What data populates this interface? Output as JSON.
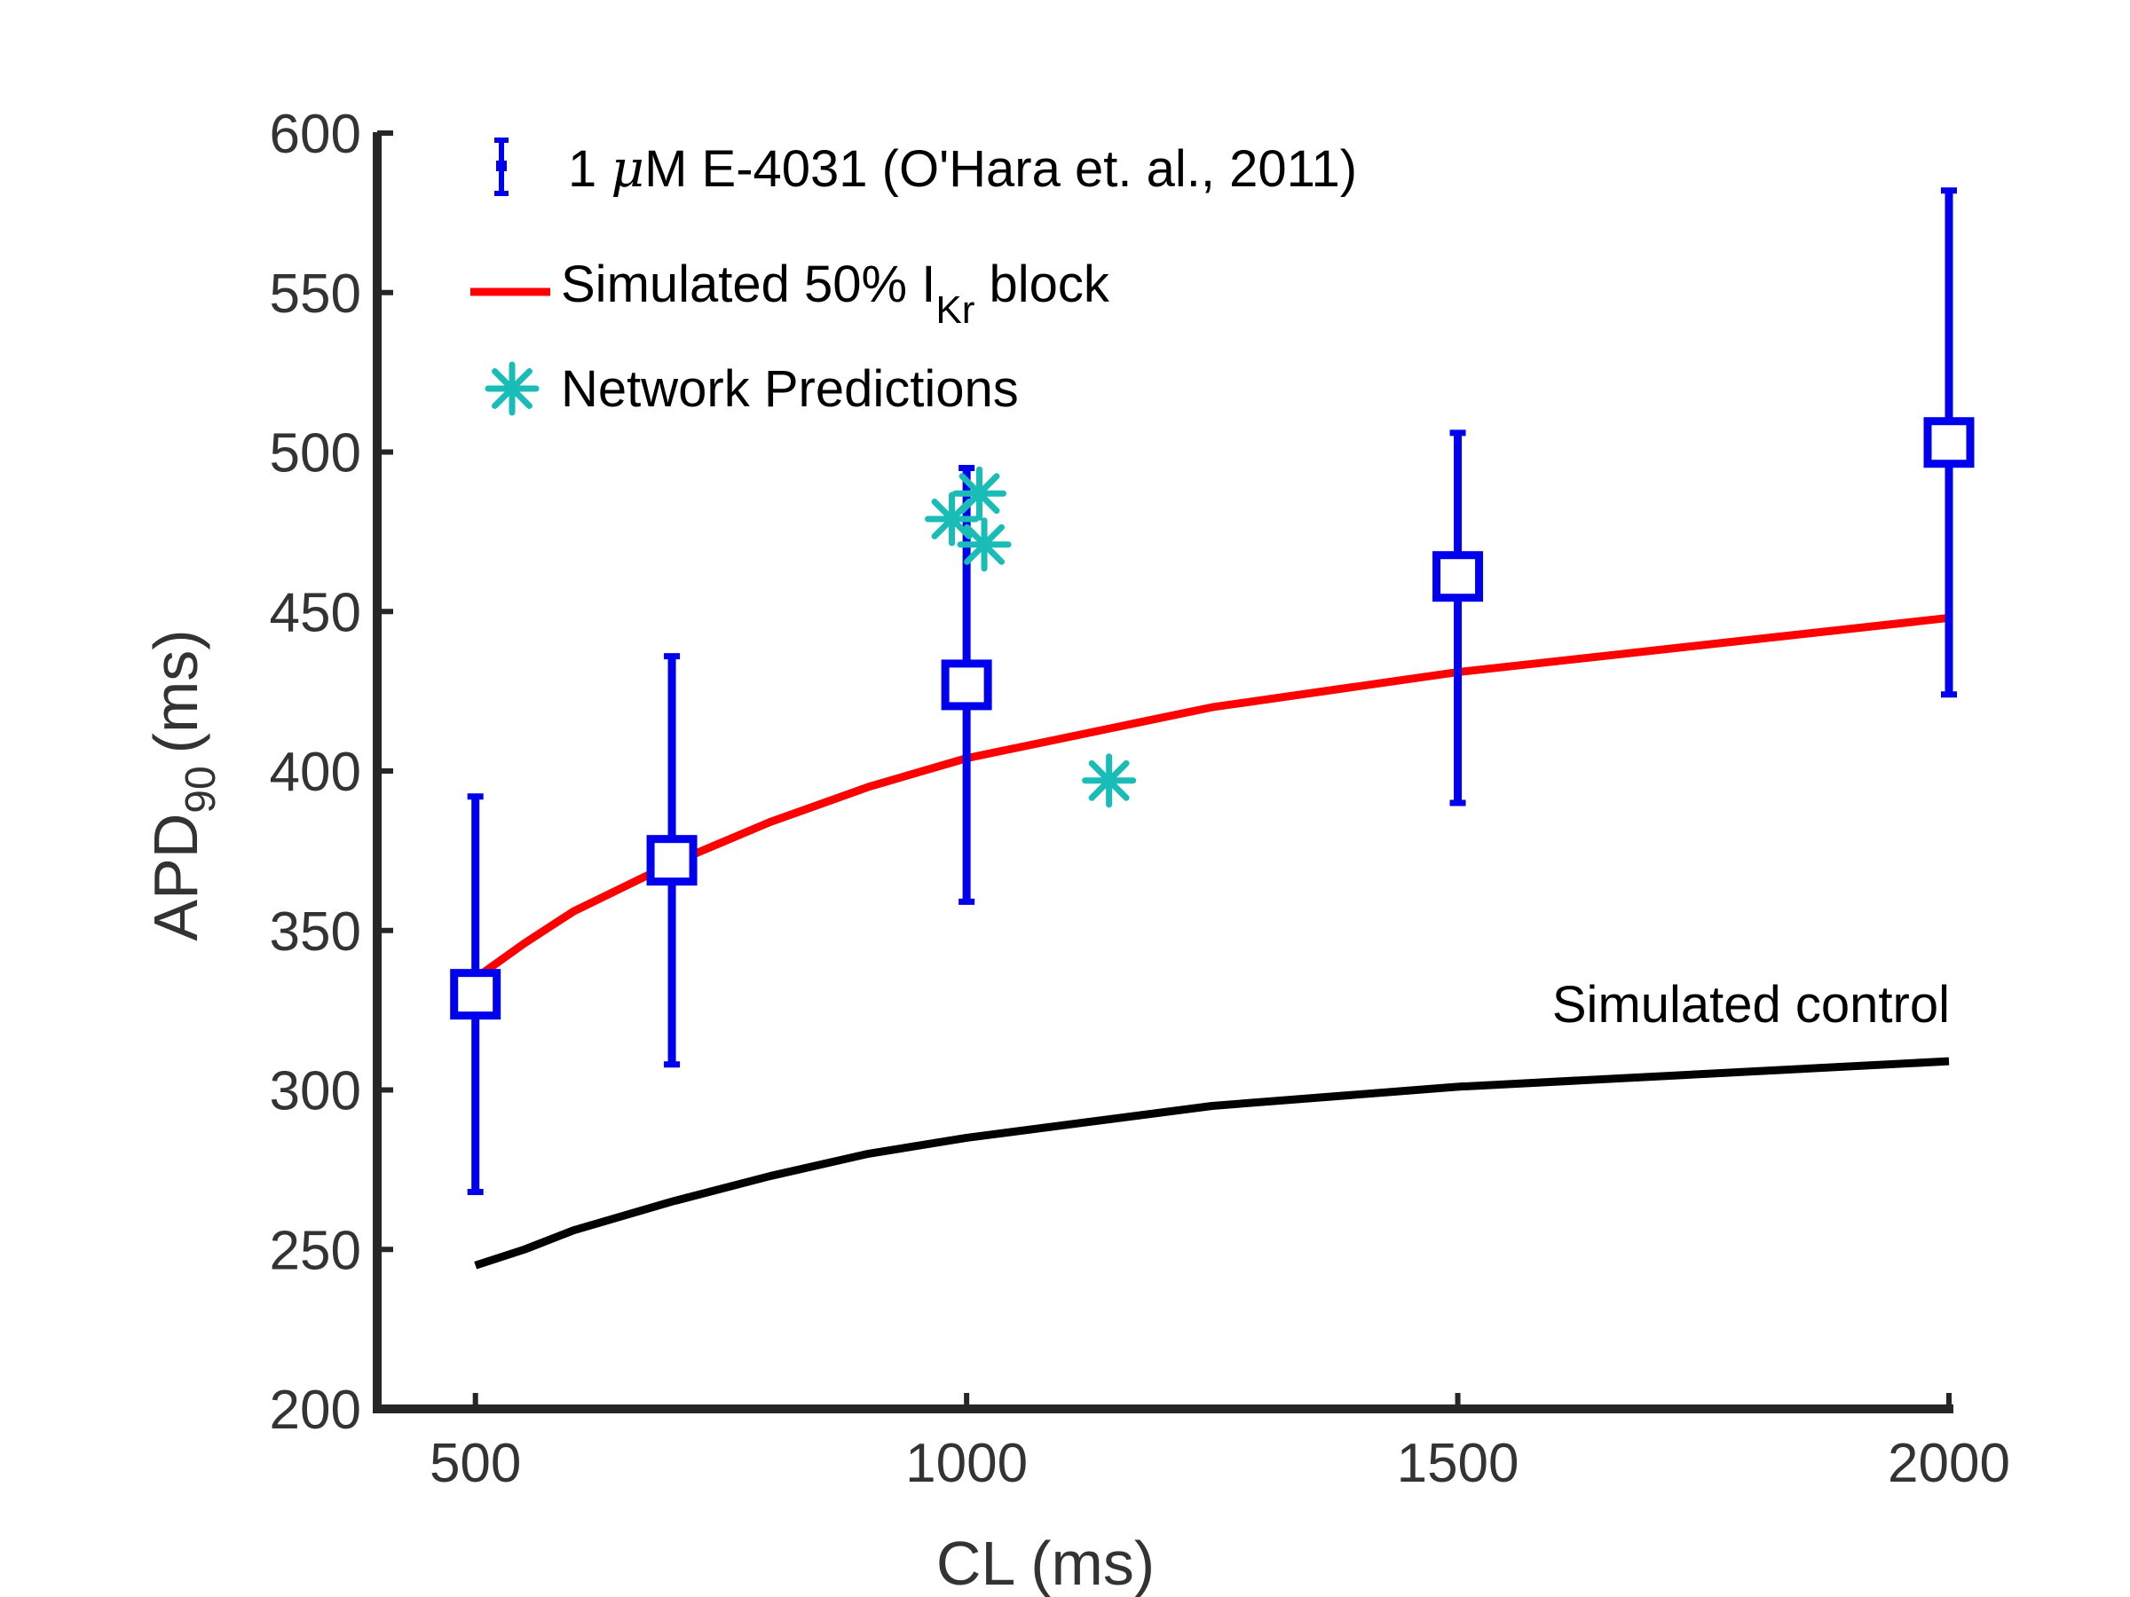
{
  "chart_data": {
    "type": "scatter",
    "xlabel": "CL (ms)",
    "ylabel_main": "APD",
    "ylabel_sub": "90",
    "ylabel_unit": "(ms)",
    "xlim": [
      400,
      2000
    ],
    "ylim": [
      200,
      600
    ],
    "xticks": [
      500,
      1000,
      1500,
      2000
    ],
    "yticks": [
      200,
      250,
      300,
      350,
      400,
      450,
      500,
      550,
      600
    ],
    "grid": false,
    "legend_position": "top-left",
    "colors": {
      "experimental": "#0000ee",
      "simulated_block": "#ff0000",
      "network": "#1abcb8",
      "control": "#000000",
      "axis": "#262626"
    },
    "experimental": {
      "legend_label_pre": "1 ",
      "legend_label_mu": "μ",
      "legend_label_post": "M E-4031 (O'Hara et. al.,  2011)",
      "points": [
        {
          "x": 500,
          "y": 330,
          "lower": 268,
          "upper": 392
        },
        {
          "x": 700,
          "y": 372,
          "lower": 308,
          "upper": 436
        },
        {
          "x": 1000,
          "y": 427,
          "lower": 359,
          "upper": 495
        },
        {
          "x": 1500,
          "y": 461,
          "lower": 390,
          "upper": 506
        },
        {
          "x": 2000,
          "y": 503,
          "lower": 424,
          "upper": 582
        }
      ]
    },
    "simulated_block": {
      "legend_label_pre": "Simulated 50% I",
      "legend_label_sub": "Kr",
      "legend_label_post": " block",
      "x": [
        500,
        550,
        600,
        700,
        800,
        900,
        1000,
        1250,
        1500,
        2000
      ],
      "y": [
        335,
        346,
        356,
        371,
        384,
        395,
        404,
        420,
        431,
        448
      ]
    },
    "network": {
      "legend_label": "Network Predictions",
      "points": [
        {
          "x": 985,
          "y": 479
        },
        {
          "x": 1013,
          "y": 487
        },
        {
          "x": 1018,
          "y": 471
        },
        {
          "x": 1145,
          "y": 397
        }
      ]
    },
    "control": {
      "label": "Simulated control",
      "x": [
        500,
        550,
        600,
        700,
        800,
        900,
        1000,
        1250,
        1500,
        2000
      ],
      "y": [
        245,
        250,
        256,
        265,
        273,
        280,
        285,
        295,
        301,
        309
      ]
    }
  }
}
